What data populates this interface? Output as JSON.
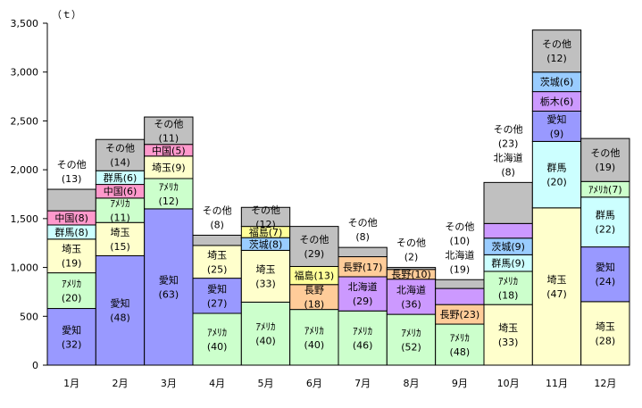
{
  "chart_data": {
    "type": "bar",
    "stacked": true,
    "ylabel": "（ｔ）",
    "ylim": [
      0,
      3500
    ],
    "yticks": [
      0,
      500,
      1000,
      1500,
      2000,
      2500,
      3000,
      3500
    ],
    "ytick_labels": [
      "0",
      "500",
      "1,000",
      "1,500",
      "2,000",
      "2,500",
      "3,000",
      "3,500"
    ],
    "grid": false,
    "legend": "none",
    "categories": [
      "1月",
      "2月",
      "3月",
      "4月",
      "5月",
      "6月",
      "7月",
      "8月",
      "9月",
      "10月",
      "11月",
      "12月"
    ],
    "colors": {
      "愛知": "#9999ff",
      "アメリカ": "#ccffcc",
      "埼玉": "#ffffcc",
      "群馬": "#ccffff",
      "中国": "#ff99cc",
      "その他": "#c0c0c0",
      "茨城": "#99ccff",
      "福島": "#ffff99",
      "長野": "#ffcc99",
      "北海道": "#cc99ff",
      "栃木": "#cc99ff",
      "unlabeled": "#cc99ff"
    },
    "bars": [
      {
        "month": "1月",
        "segments": [
          {
            "name": "愛知",
            "value": 580,
            "label": "愛知\n(32)"
          },
          {
            "name": "アメリカ",
            "value": 365,
            "label": "ｱﾒﾘｶ\n(20)"
          },
          {
            "name": "埼玉",
            "value": 345,
            "label": "埼玉\n(19)"
          },
          {
            "name": "群馬",
            "value": 145,
            "label": "群馬(8)"
          },
          {
            "name": "中国",
            "value": 145,
            "label": "中国(8)"
          },
          {
            "name": "その他",
            "value": 220,
            "label": "その他\n(13)",
            "label_above": true
          }
        ]
      },
      {
        "month": "2月",
        "segments": [
          {
            "name": "愛知",
            "value": 1120,
            "label": "愛知\n(48)"
          },
          {
            "name": "埼玉",
            "value": 340,
            "label": "埼玉\n(15)"
          },
          {
            "name": "アメリカ",
            "value": 250,
            "label": "ｱﾒﾘｶ\n(11)"
          },
          {
            "name": "中国",
            "value": 140,
            "label": "中国(6)"
          },
          {
            "name": "群馬",
            "value": 140,
            "label": "群馬(6)"
          },
          {
            "name": "その他",
            "value": 320,
            "label": "その他\n(14)"
          }
        ]
      },
      {
        "month": "3月",
        "segments": [
          {
            "name": "愛知",
            "value": 1600,
            "label": "愛知\n(63)"
          },
          {
            "name": "アメリカ",
            "value": 310,
            "label": "ｱﾒﾘｶ\n(12)"
          },
          {
            "name": "埼玉",
            "value": 230,
            "label": "埼玉(9)"
          },
          {
            "name": "中国",
            "value": 120,
            "label": "中国(5)"
          },
          {
            "name": "その他",
            "value": 280,
            "label": "その他\n(11)"
          }
        ]
      },
      {
        "month": "4月",
        "segments": [
          {
            "name": "アメリカ",
            "value": 530,
            "label": "ｱﾒﾘｶ\n(40)"
          },
          {
            "name": "愛知",
            "value": 360,
            "label": "愛知\n(27)"
          },
          {
            "name": "埼玉",
            "value": 335,
            "label": "埼玉\n(25)"
          },
          {
            "name": "その他",
            "value": 105,
            "label": "その他\n(8)",
            "label_above": true
          }
        ]
      },
      {
        "month": "5月",
        "segments": [
          {
            "name": "アメリカ",
            "value": 645,
            "label": "ｱﾒﾘｶ\n(40)"
          },
          {
            "name": "埼玉",
            "value": 530,
            "label": "埼玉\n(33)"
          },
          {
            "name": "茨城",
            "value": 130,
            "label": "茨城(8)"
          },
          {
            "name": "福島",
            "value": 115,
            "label": "福島(7)"
          },
          {
            "name": "その他",
            "value": 195,
            "label": "その他\n(12)"
          }
        ]
      },
      {
        "month": "6月",
        "segments": [
          {
            "name": "アメリカ",
            "value": 570,
            "label": "ｱﾒﾘｶ\n(40)"
          },
          {
            "name": "長野",
            "value": 255,
            "label": "長野\n(18)"
          },
          {
            "name": "福島",
            "value": 185,
            "label": "福島(13)"
          },
          {
            "name": "その他",
            "value": 410,
            "label": "その他\n(29)"
          }
        ]
      },
      {
        "month": "7月",
        "segments": [
          {
            "name": "アメリカ",
            "value": 555,
            "label": "ｱﾒﾘｶ\n(46)"
          },
          {
            "name": "北海道",
            "value": 350,
            "label": "北海道\n(29)"
          },
          {
            "name": "長野",
            "value": 205,
            "label": "長野(17)"
          },
          {
            "name": "その他",
            "value": 95,
            "label": "その他\n(8)",
            "label_above": true
          }
        ]
      },
      {
        "month": "8月",
        "segments": [
          {
            "name": "アメリカ",
            "value": 520,
            "label": "ｱﾒﾘｶ\n(52)"
          },
          {
            "name": "北海道",
            "value": 360,
            "label": "北海道\n(36)"
          },
          {
            "name": "長野",
            "value": 100,
            "label": "長野(10)"
          },
          {
            "name": "その他",
            "value": 20,
            "label": "その他\n(2)",
            "label_above": true
          }
        ]
      },
      {
        "month": "9月",
        "segments": [
          {
            "name": "アメリカ",
            "value": 420,
            "label": "ｱﾒﾘｶ\n(48)"
          },
          {
            "name": "長野",
            "value": 200,
            "label": "長野(23)"
          },
          {
            "name": "北海道",
            "value": 165,
            "label": "北海道\n(19)",
            "label_above": true
          },
          {
            "name": "その他",
            "value": 90,
            "label": "その他\n(10)",
            "label_above": true
          }
        ]
      },
      {
        "month": "10月",
        "segments": [
          {
            "name": "埼玉",
            "value": 620,
            "label": "埼玉\n(33)"
          },
          {
            "name": "アメリカ",
            "value": 340,
            "label": "ｱﾒﾘｶ\n(18)"
          },
          {
            "name": "群馬",
            "value": 170,
            "label": "群馬(9)"
          },
          {
            "name": "茨城",
            "value": 170,
            "label": "茨城(9)"
          },
          {
            "name": "北海道",
            "value": 150,
            "label": "北海道\n(8)",
            "label_above": true
          },
          {
            "name": "その他",
            "value": 420,
            "label": "その他\n(23)",
            "label_above": true
          }
        ]
      },
      {
        "month": "11月",
        "segments": [
          {
            "name": "埼玉",
            "value": 1610,
            "label": "埼玉\n(47)"
          },
          {
            "name": "群馬",
            "value": 680,
            "label": "群馬\n(20)"
          },
          {
            "name": "愛知",
            "value": 310,
            "label": "愛知\n(9)"
          },
          {
            "name": "栃木",
            "value": 200,
            "label": "栃木(6)"
          },
          {
            "name": "茨城",
            "value": 200,
            "label": "茨城(6)"
          },
          {
            "name": "その他",
            "value": 430,
            "label": "その他\n(12)"
          }
        ]
      },
      {
        "month": "12月",
        "segments": [
          {
            "name": "埼玉",
            "value": 650,
            "label": "埼玉\n(28)"
          },
          {
            "name": "愛知",
            "value": 560,
            "label": "愛知\n(24)"
          },
          {
            "name": "群馬",
            "value": 510,
            "label": "群馬\n(22)"
          },
          {
            "name": "アメリカ",
            "value": 160,
            "label": "ｱﾒﾘｶ(7)"
          },
          {
            "name": "その他",
            "value": 440,
            "label": "その他\n(19)"
          }
        ]
      }
    ]
  }
}
